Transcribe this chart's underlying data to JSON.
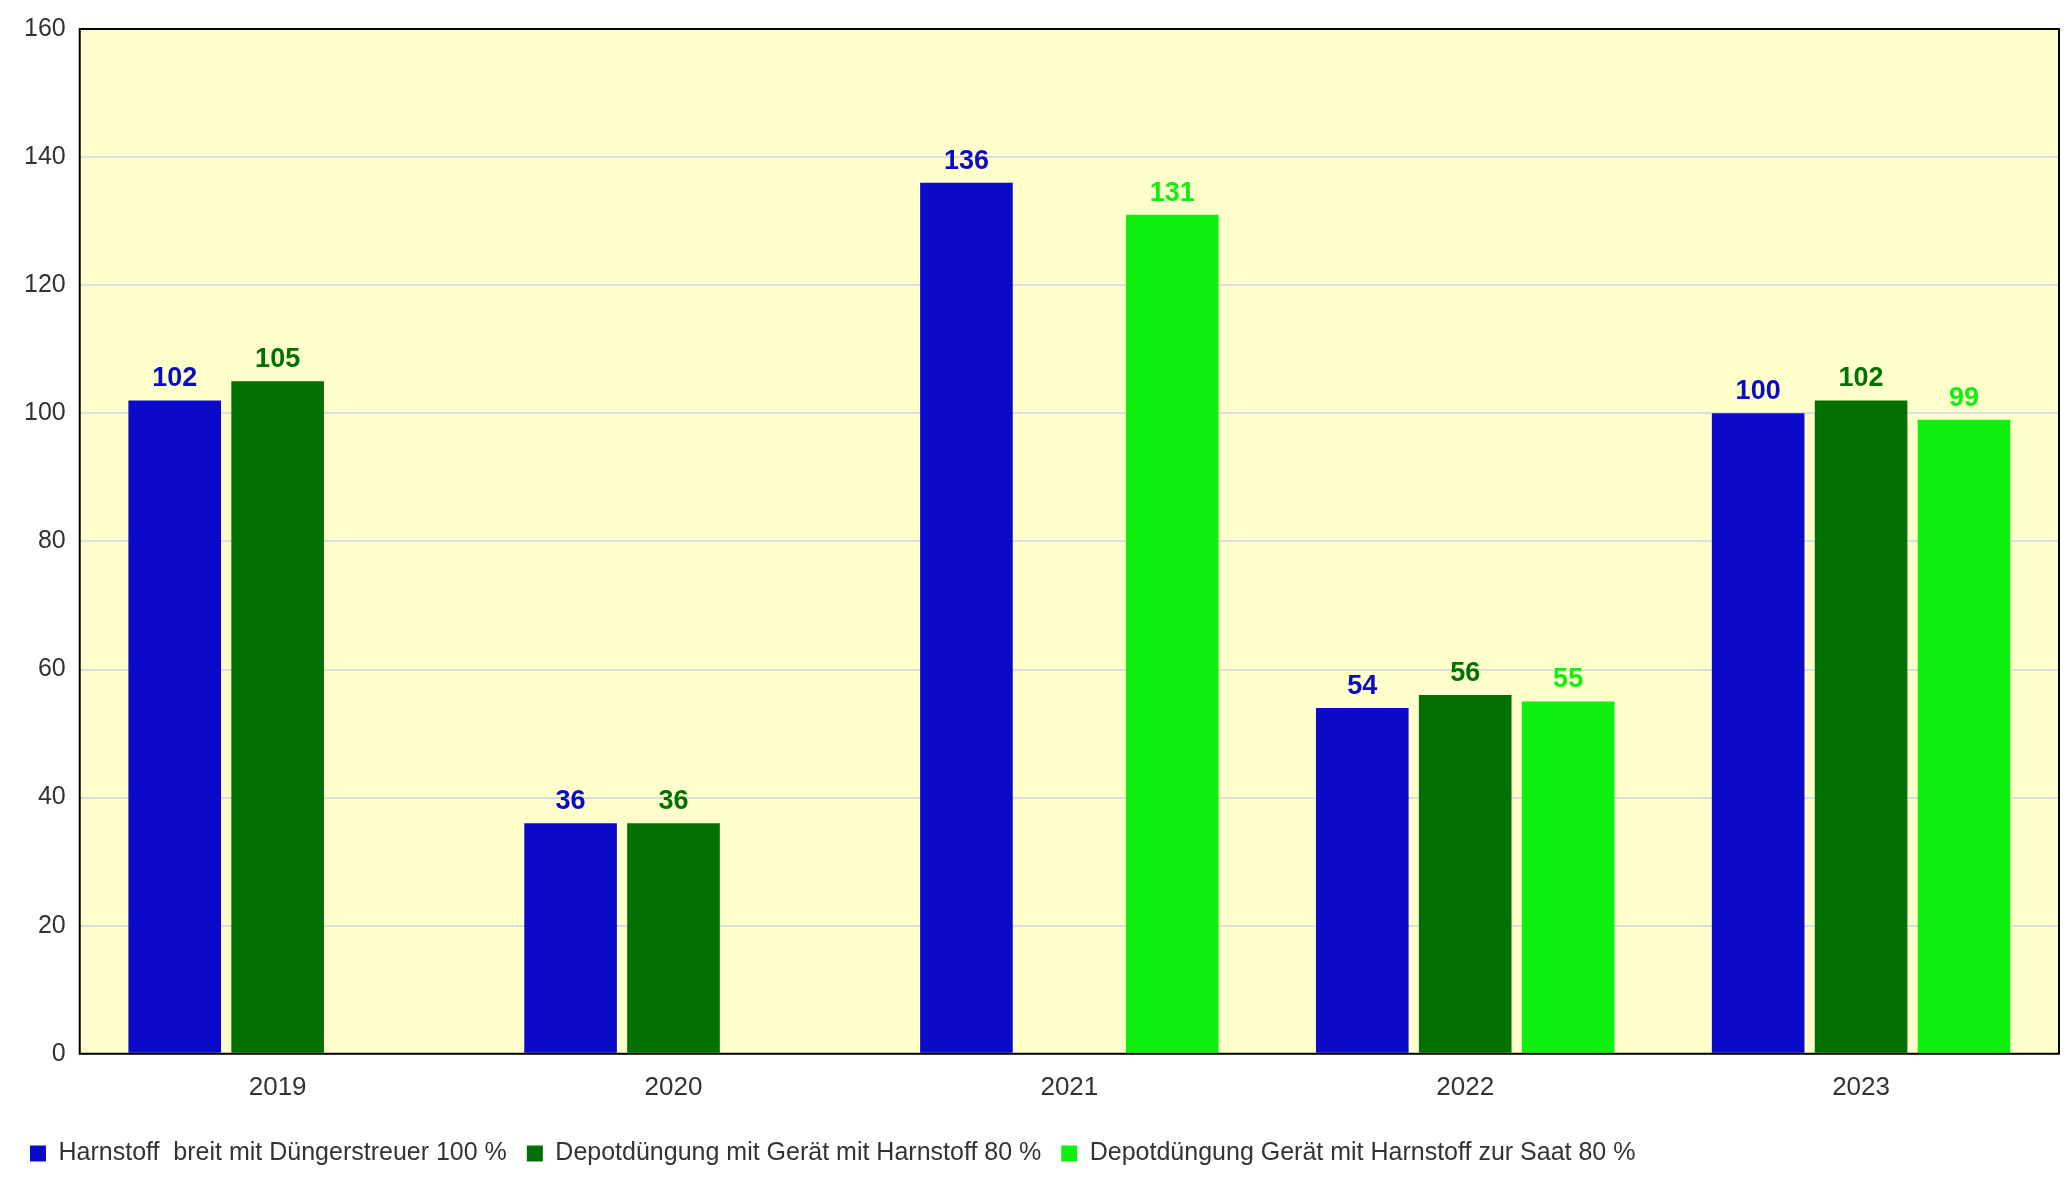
{
  "chart_data": {
    "type": "bar",
    "categories": [
      "2019",
      "2020",
      "2021",
      "2022",
      "2023"
    ],
    "series": [
      {
        "name": "Harnstoff  breit mit Düngerstreuer 100 %",
        "color": "#0a0ac8",
        "values": [
          102,
          36,
          136,
          54,
          100
        ]
      },
      {
        "name": "Depotdüngung mit Gerät mit Harnstoff 80 %",
        "color": "#037003",
        "values": [
          105,
          36,
          null,
          56,
          102
        ]
      },
      {
        "name": "Depotdüngung Gerät mit Harnstoff zur Saat 80 %",
        "color": "#10f010",
        "values": [
          null,
          null,
          131,
          55,
          99
        ]
      }
    ],
    "ylim": [
      0,
      160
    ],
    "yticks": [
      0,
      20,
      40,
      60,
      80,
      100,
      120,
      140,
      160
    ],
    "grid": "y",
    "legend": "bottom",
    "data_labels": true
  }
}
